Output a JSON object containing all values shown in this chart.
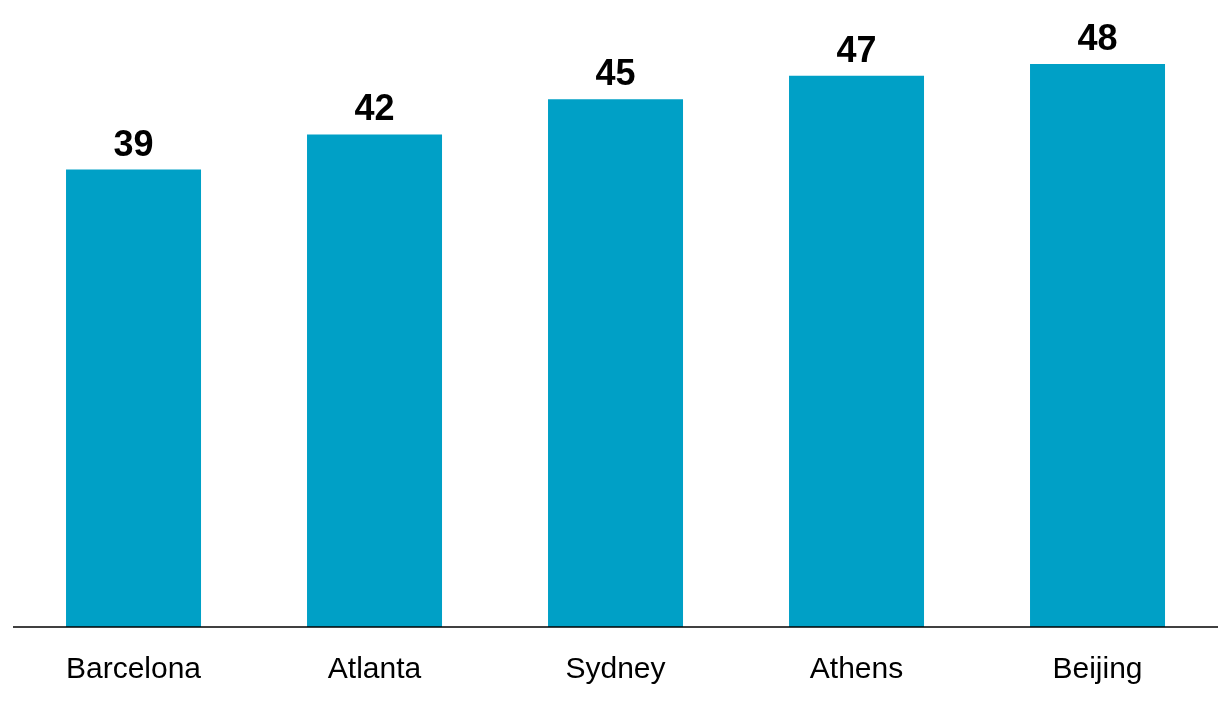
{
  "chart_data": {
    "type": "bar",
    "categories": [
      "Barcelona",
      "Atlanta",
      "Sydney",
      "Athens",
      "Beijing"
    ],
    "values": [
      39,
      42,
      45,
      47,
      48
    ],
    "color": "#00a0c6",
    "data_labels": true,
    "grid": false,
    "legend": false
  }
}
